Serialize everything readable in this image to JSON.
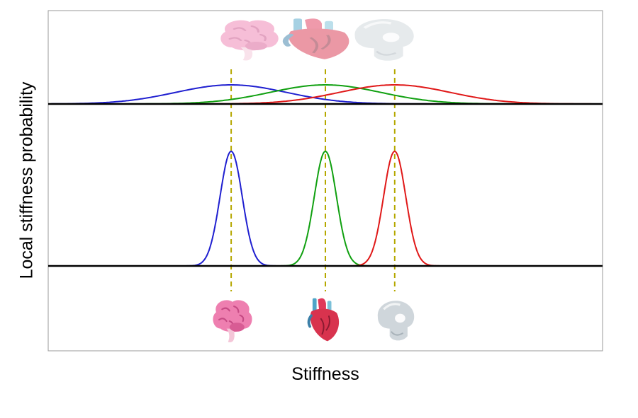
{
  "figure": {
    "xlabel": "Stiffness",
    "ylabel": "Local stiffness probability"
  },
  "chart_data": {
    "type": "line",
    "xlabel": "Stiffness",
    "ylabel": "Local stiffness probability",
    "panels": [
      {
        "position": "top",
        "description_of_shape": "wide, overlapping distributions",
        "series": [
          {
            "tissue": "brain",
            "color": "#1f1fd0",
            "mean": 0.33,
            "sd": 0.1
          },
          {
            "tissue": "heart",
            "color": "#10a010",
            "mean": 0.5,
            "sd": 0.1
          },
          {
            "tissue": "bone",
            "color": "#e01818",
            "mean": 0.625,
            "sd": 0.1
          }
        ]
      },
      {
        "position": "bottom",
        "description_of_shape": "narrow, separated distributions",
        "series": [
          {
            "tissue": "brain",
            "color": "#1f1fd0",
            "mean": 0.33,
            "sd": 0.02
          },
          {
            "tissue": "heart",
            "color": "#10a010",
            "mean": 0.5,
            "sd": 0.02
          },
          {
            "tissue": "bone",
            "color": "#e01818",
            "mean": 0.625,
            "sd": 0.02
          }
        ]
      }
    ],
    "markers": [
      {
        "tissue": "brain",
        "icon": "brain-icon",
        "x": 0.33
      },
      {
        "tissue": "heart",
        "icon": "heart-icon",
        "x": 0.5
      },
      {
        "tissue": "bone",
        "icon": "skull-icon",
        "x": 0.625
      }
    ],
    "xlim": [
      0,
      1
    ],
    "grid": false,
    "legend": "none"
  }
}
